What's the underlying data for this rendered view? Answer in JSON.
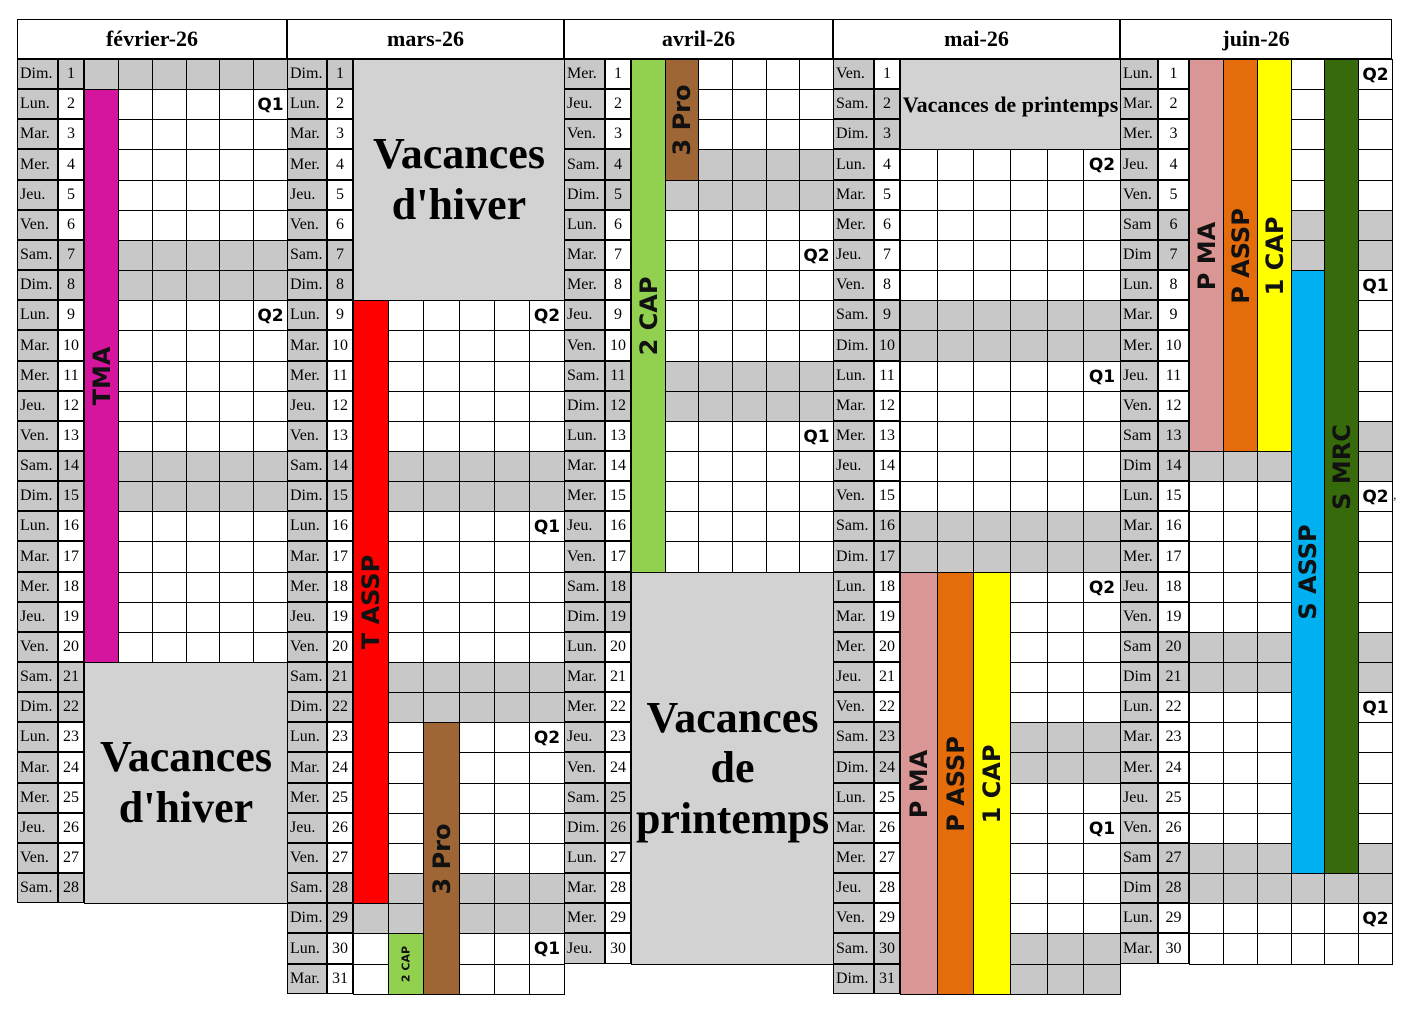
{
  "colors": {
    "weekend": "#c8c8c8",
    "vacation": "#d2d2d2",
    "magenta": "#d6159f",
    "red": "#ff0000",
    "brown": "#9e6634",
    "light_green": "#92d050",
    "pink": "#da9694",
    "orange": "#e46c0a",
    "yellow": "#ffff00",
    "cyan": "#00b0f0",
    "dark_green": "#376a0a"
  },
  "months": [
    {
      "title": "février-26",
      "ndays": 28,
      "first_weekday": 0
    },
    {
      "title": "mars-26",
      "ndays": 31,
      "first_weekday": 0
    },
    {
      "title": "avril-26",
      "ndays": 30,
      "first_weekday": 3
    },
    {
      "title": "mai-26",
      "ndays": 31,
      "first_weekday": 5
    },
    {
      "title": "juin-26",
      "ndays": 30,
      "first_weekday": 1
    }
  ],
  "weekday_labels": [
    "Dim.",
    "Lun.",
    "Mar.",
    "Mer.",
    "Jeu.",
    "Ven.",
    "Sam."
  ],
  "weekday_labels_june": [
    "Dim",
    "Lun.",
    "Mar.",
    "Mer.",
    "Jeu.",
    "Ven.",
    "Sam"
  ],
  "vacations": [
    {
      "month": 0,
      "from": 21,
      "to": 28,
      "text": "Vacances d'hiver",
      "big": true
    },
    {
      "month": 1,
      "from": 1,
      "to": 8,
      "text": "Vacances d'hiver",
      "big": true
    },
    {
      "month": 2,
      "from": 18,
      "to": 30,
      "text": "Vacances de printemps",
      "big": true
    },
    {
      "month": 3,
      "from": 1,
      "to": 3,
      "text": "Vacances de printemps",
      "big": false
    }
  ],
  "bars": [
    {
      "month": 0,
      "col": 0,
      "from": 2,
      "to": 20,
      "color": "magenta",
      "label": "TMA"
    },
    {
      "month": 1,
      "col": 0,
      "from": 9,
      "to": 28,
      "color": "red",
      "label": "T ASSP"
    },
    {
      "month": 1,
      "col": 1,
      "from": 30,
      "to": 31,
      "color": "light_green",
      "label": "2 CAP",
      "small": true
    },
    {
      "month": 1,
      "col": 2,
      "from": 23,
      "to": 31,
      "color": "brown",
      "label": "3 Pro"
    },
    {
      "month": 2,
      "col": 0,
      "from": 1,
      "to": 17,
      "color": "light_green",
      "label": "2 CAP"
    },
    {
      "month": 2,
      "col": 1,
      "from": 1,
      "to": 4,
      "color": "brown",
      "label": "3 Pro"
    },
    {
      "month": 3,
      "col": 0,
      "from": 18,
      "to": 31,
      "color": "pink",
      "label": "P MA"
    },
    {
      "month": 3,
      "col": 1,
      "from": 18,
      "to": 31,
      "color": "orange",
      "label": "P ASSP"
    },
    {
      "month": 3,
      "col": 2,
      "from": 18,
      "to": 31,
      "color": "yellow",
      "label": "1 CAP"
    },
    {
      "month": 4,
      "col": 0,
      "from": 1,
      "to": 13,
      "color": "pink",
      "label": "P MA"
    },
    {
      "month": 4,
      "col": 1,
      "from": 1,
      "to": 13,
      "color": "orange",
      "label": "P ASSP"
    },
    {
      "month": 4,
      "col": 2,
      "from": 1,
      "to": 13,
      "color": "yellow",
      "label": "1 CAP"
    },
    {
      "month": 4,
      "col": 3,
      "from": 8,
      "to": 27,
      "color": "cyan",
      "label": "S ASSP"
    },
    {
      "month": 4,
      "col": 4,
      "from": 1,
      "to": 27,
      "color": "dark_green",
      "label": "S MRC"
    }
  ],
  "tags": [
    {
      "month": 0,
      "day": 2,
      "text": "Q1"
    },
    {
      "month": 0,
      "day": 9,
      "text": "Q2"
    },
    {
      "month": 1,
      "day": 9,
      "text": "Q2"
    },
    {
      "month": 1,
      "day": 16,
      "text": "Q1"
    },
    {
      "month": 1,
      "day": 23,
      "text": "Q2"
    },
    {
      "month": 1,
      "day": 30,
      "text": "Q1"
    },
    {
      "month": 2,
      "day": 7,
      "text": "Q2"
    },
    {
      "month": 2,
      "day": 13,
      "text": "Q1"
    },
    {
      "month": 3,
      "day": 4,
      "text": "Q2"
    },
    {
      "month": 3,
      "day": 11,
      "text": "Q1"
    },
    {
      "month": 3,
      "day": 18,
      "text": "Q2"
    },
    {
      "month": 3,
      "day": 26,
      "text": "Q1"
    },
    {
      "month": 4,
      "day": 1,
      "text": "Q2"
    },
    {
      "month": 4,
      "day": 8,
      "text": "Q1"
    },
    {
      "month": 4,
      "day": 15,
      "text": "Q2"
    },
    {
      "month": 4,
      "day": 22,
      "text": "Q1"
    },
    {
      "month": 4,
      "day": 29,
      "text": "Q2"
    }
  ],
  "stray_mark": ","
}
